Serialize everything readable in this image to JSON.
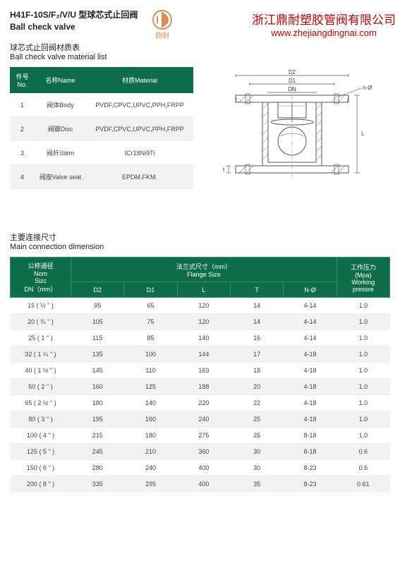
{
  "header": {
    "title_cn": "H41F-10S/F₂/V/U 型球芯式止回阀",
    "title_en": "Ball check valve",
    "logo_text": "鼎耐",
    "company_cn": "浙江鼎耐塑胶管阀有限公司",
    "company_url": "www.zhejiangdingnai.com"
  },
  "material": {
    "section_cn": "球芯式止回阀材质表",
    "section_en": "Ball check valve material list",
    "headers": {
      "no": "件号No.",
      "name": "名称Name",
      "mat": "材质Material"
    },
    "rows": [
      {
        "no": "1",
        "name": "阀体Body",
        "mat": "PVDF,CPVC,UPVC,PPH,FRPP"
      },
      {
        "no": "2",
        "name": "阀瓣Disc",
        "mat": "PVDF,CPVC,UPVC,PPH,FRPP"
      },
      {
        "no": "3",
        "name": "阀杆Stem",
        "mat": "ICr18Ni9Ti"
      },
      {
        "no": "4",
        "name": "阀座Valve seat",
        "mat": "EPDM.FKM."
      }
    ]
  },
  "diagram": {
    "labels": {
      "d2": "D2",
      "d1": "D1",
      "dn": "DN",
      "no": "n-Ø",
      "l": "L",
      "t": "t"
    }
  },
  "dimensions": {
    "section_cn": "主要连接尺寸",
    "section_en": "Main connection dimension",
    "headers": {
      "dn": "公称通径\nNom\nSizc\nDN（mm）",
      "flange": "法兰式尺寸（mm）\nFlange Size",
      "d2": "D2",
      "d1": "D1",
      "l": "L",
      "t": "T",
      "no": "N-Ø",
      "wp": "工作压力\n(Mpa)\nWorking\npressre"
    },
    "rows": [
      {
        "dn": "15 ( ½ \" )",
        "d2": "95",
        "d1": "65",
        "l": "120",
        "t": "14",
        "no": "4-14",
        "wp": "1.0"
      },
      {
        "dn": "20 ( ¾ \" )",
        "d2": "105",
        "d1": "75",
        "l": "120",
        "t": "14",
        "no": "4-14",
        "wp": "1.0"
      },
      {
        "dn": "25 ( 1 \" )",
        "d2": "115",
        "d1": "85",
        "l": "140",
        "t": "16",
        "no": "4-14",
        "wp": "1.0"
      },
      {
        "dn": "32 ( 1 ¼ \" )",
        "d2": "135",
        "d1": "100",
        "l": "144",
        "t": "17",
        "no": "4-18",
        "wp": "1.0"
      },
      {
        "dn": "40 ( 1 ½ \" )",
        "d2": "145",
        "d1": "110",
        "l": "163",
        "t": "18",
        "no": "4-18",
        "wp": "1.0"
      },
      {
        "dn": "50 ( 2 \" )",
        "d2": "160",
        "d1": "125",
        "l": "188",
        "t": "20",
        "no": "4-18",
        "wp": "1.0"
      },
      {
        "dn": "65 ( 2 ½ \" )",
        "d2": "180",
        "d1": "140",
        "l": "220",
        "t": "22",
        "no": "4-18",
        "wp": "1.0"
      },
      {
        "dn": "80 ( 3 \" )",
        "d2": "195",
        "d1": "160",
        "l": "240",
        "t": "25",
        "no": "4-18",
        "wp": "1.0"
      },
      {
        "dn": "100 ( 4 \" )",
        "d2": "215",
        "d1": "180",
        "l": "275",
        "t": "25",
        "no": "8-18",
        "wp": "1.0"
      },
      {
        "dn": "125 ( 5 \" )",
        "d2": "245",
        "d1": "210",
        "l": "360",
        "t": "30",
        "no": "8-18",
        "wp": "0.6"
      },
      {
        "dn": "150 ( 6 \" )",
        "d2": "280",
        "d1": "240",
        "l": "400",
        "t": "30",
        "no": "8-23",
        "wp": "0.6"
      },
      {
        "dn": "200 ( 8 \" )",
        "d2": "335",
        "d1": "295",
        "l": "400",
        "t": "35",
        "no": "8-23",
        "wp": "0.61"
      }
    ]
  },
  "colors": {
    "header_bg": "#0d6d49",
    "accent": "#c00",
    "logo": "#d98e5c"
  }
}
